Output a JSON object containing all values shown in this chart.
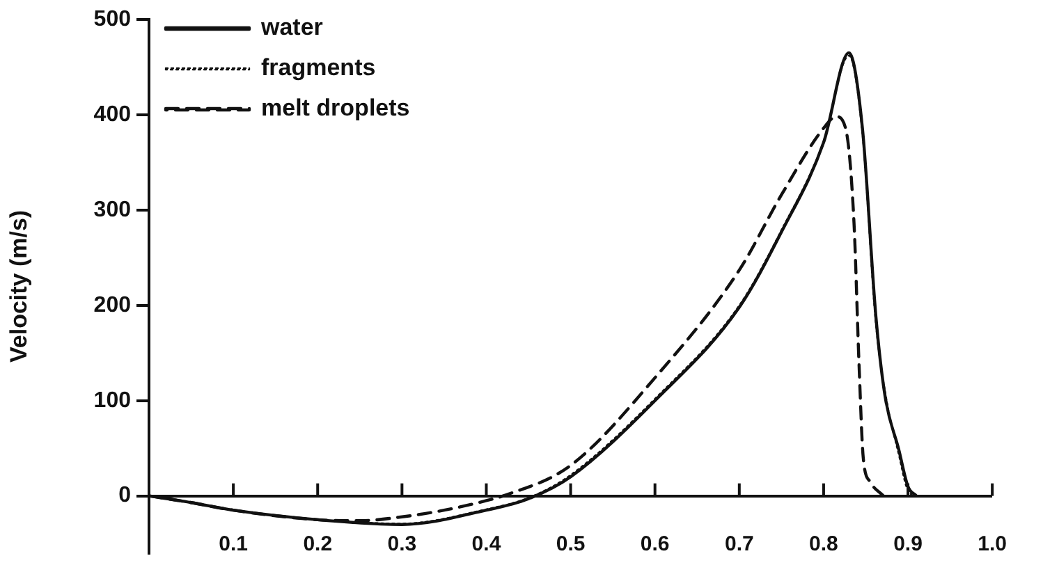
{
  "chart_data": {
    "type": "line",
    "ylabel": "Velocity (m/s)",
    "xlim": [
      0,
      1
    ],
    "ylim": [
      -60,
      500
    ],
    "xticks": [
      0.1,
      0.2,
      0.3,
      0.4,
      0.5,
      0.6,
      0.7,
      0.8,
      0.9,
      {
        "value": 1.0,
        "label": "1.0"
      }
    ],
    "yticks": [
      0,
      100,
      200,
      300,
      400,
      500
    ],
    "grid": false,
    "legend": "top left",
    "marker": "none",
    "series": [
      {
        "name": "water",
        "color": "#111111",
        "line_style": "solid",
        "x": [
          0,
          0.05,
          0.1,
          0.2,
          0.3,
          0.4,
          0.45,
          0.5,
          0.6,
          0.7,
          0.75,
          0.8,
          0.83,
          0.846,
          0.862,
          0.873,
          0.889,
          0.9,
          0.91
        ],
        "values": [
          0,
          -7,
          -15,
          -25,
          -30,
          -15,
          -3,
          20,
          100,
          198,
          277,
          371,
          465,
          386,
          188,
          104,
          49,
          10,
          0
        ]
      },
      {
        "name": "fragments",
        "color": "#111111",
        "line_style": "dotted",
        "x": [
          0,
          0.05,
          0.1,
          0.2,
          0.3,
          0.4,
          0.45,
          0.5,
          0.6,
          0.7,
          0.75,
          0.8,
          0.83,
          0.846,
          0.862,
          0.875,
          0.89,
          0.898,
          0.905
        ],
        "values": [
          0,
          -7,
          -15,
          -25,
          -29,
          -14,
          -2,
          22,
          102,
          200,
          279,
          372,
          462,
          380,
          180,
          99,
          40,
          10,
          0
        ]
      },
      {
        "name": "melt droplets",
        "color": "#111111",
        "line_style": "dashed",
        "x": [
          0,
          0.05,
          0.1,
          0.2,
          0.25,
          0.3,
          0.35,
          0.4,
          0.42,
          0.5,
          0.6,
          0.7,
          0.75,
          0.8,
          0.815,
          0.826,
          0.836,
          0.842,
          0.847,
          0.855,
          0.871
        ],
        "values": [
          0,
          -7,
          -15,
          -25,
          -26,
          -22,
          -15,
          -5,
          0,
          32,
          124,
          237,
          316,
          386,
          398,
          386,
          287,
          138,
          40,
          15,
          0
        ]
      }
    ]
  }
}
